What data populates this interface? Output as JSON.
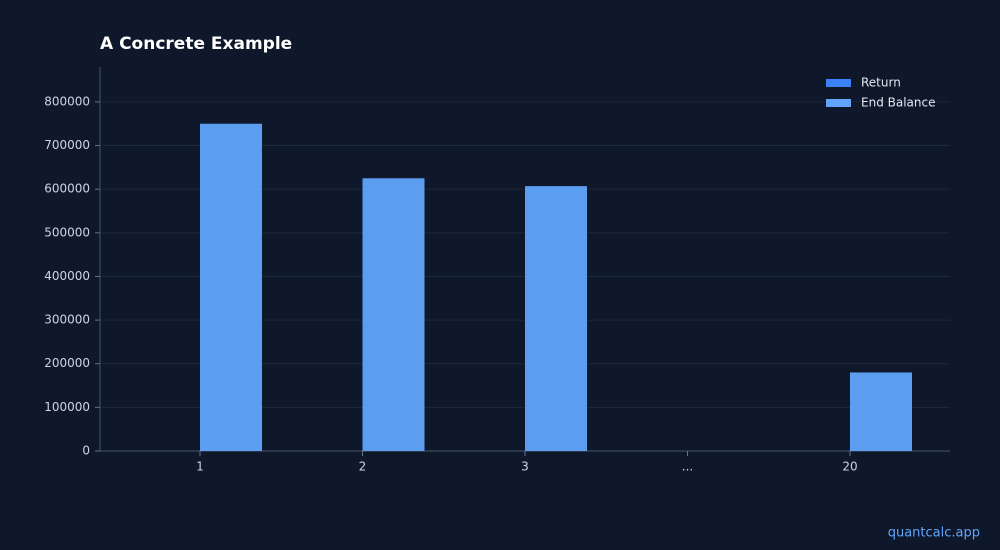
{
  "chart_data": {
    "type": "bar",
    "title": "A Concrete Example",
    "categories": [
      "1",
      "2",
      "3",
      "...",
      "20"
    ],
    "series": [
      {
        "name": "Return",
        "color": "#3b82f6",
        "values": [
          0,
          0,
          0,
          null,
          0
        ]
      },
      {
        "name": "End Balance",
        "color": "#60a5fa",
        "values": [
          750000,
          625000,
          607000,
          null,
          180000
        ]
      }
    ],
    "ylim": [
      0,
      880000
    ],
    "yticks": [
      0,
      100000,
      200000,
      300000,
      400000,
      500000,
      600000,
      700000,
      800000
    ],
    "grid": true,
    "legend": "upper right"
  },
  "footer": "quantcalc.app"
}
